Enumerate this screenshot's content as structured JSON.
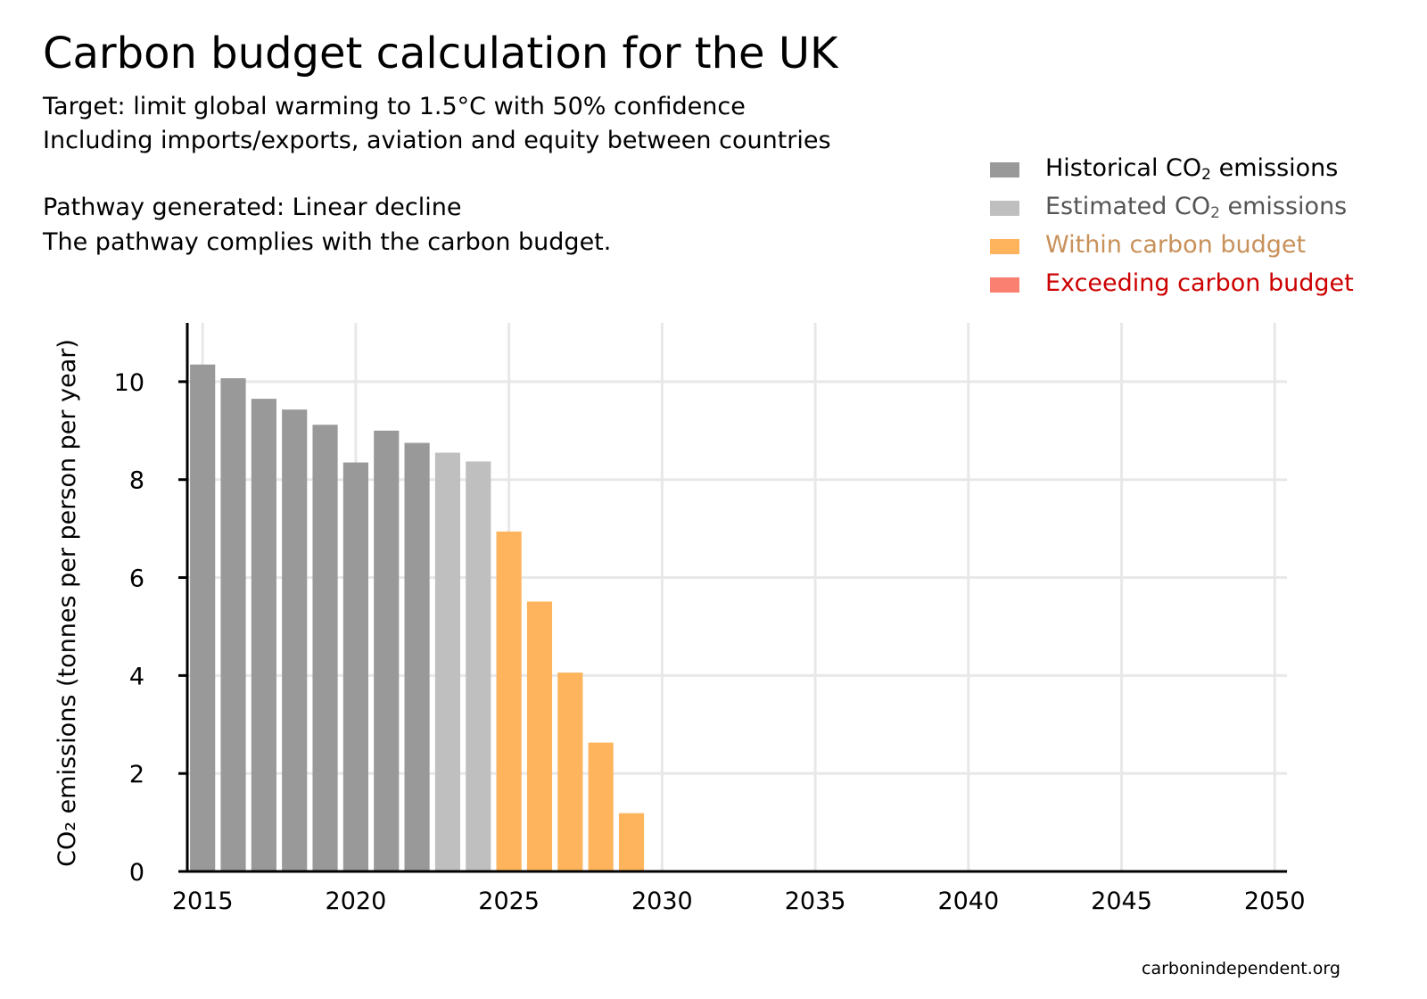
{
  "header": {
    "title": "Carbon budget calculation for the UK",
    "subtitle_1": "Target: limit global warming to 1.5°C with 50% confidence",
    "subtitle_2": "Including imports/exports, aviation and equity between countries",
    "pathway": "Pathway generated: Linear decline",
    "compliance": "The pathway complies with the carbon budget."
  },
  "legend": {
    "items": [
      {
        "pre": "Historical CO",
        "sub": "2",
        "post": " emissions",
        "color": "#999999",
        "text_color": "#000000"
      },
      {
        "pre": "Estimated CO",
        "sub": "2",
        "post": " emissions",
        "color": "#bfbfbf",
        "text_color": "#555555"
      },
      {
        "pre": "Within carbon budget",
        "sub": "",
        "post": "",
        "color": "#fdb45c",
        "text_color": "#c8915a"
      },
      {
        "pre": "Exceeding carbon budget",
        "sub": "",
        "post": "",
        "color": "#fa8072",
        "text_color": "#cc0000"
      }
    ]
  },
  "footer": {
    "credit": "carbonindependent.org"
  },
  "chart_data": {
    "type": "bar",
    "title": "Carbon budget calculation for the UK",
    "ylabel": "CO₂ emissions (tonnes per person per year)",
    "xlabel": "",
    "x_ticks": [
      2015,
      2020,
      2025,
      2030,
      2035,
      2040,
      2045,
      2050
    ],
    "x_tick_labels": [
      "2015",
      "2020",
      "2025",
      "2030",
      "2035",
      "2040",
      "2045",
      "2050"
    ],
    "y_ticks": [
      0,
      2,
      4,
      6,
      8,
      10
    ],
    "y_tick_labels": [
      "0",
      "2",
      "4",
      "6",
      "8",
      "10"
    ],
    "xlim": [
      2014.5,
      2050.4
    ],
    "ylim": [
      0,
      11.2
    ],
    "grid": true,
    "legend_position": "top-right",
    "series": [
      {
        "name": "Historical CO₂ emissions",
        "color": "#999999",
        "x": [
          2015,
          2016,
          2017,
          2018,
          2019,
          2020,
          2021,
          2022
        ],
        "values": [
          10.35,
          10.07,
          9.65,
          9.43,
          9.12,
          8.35,
          9.0,
          8.75
        ]
      },
      {
        "name": "Estimated CO₂ emissions",
        "color": "#bfbfbf",
        "x": [
          2023,
          2024
        ],
        "values": [
          8.55,
          8.37
        ]
      },
      {
        "name": "Within carbon budget",
        "color": "#fdb45c",
        "x": [
          2025,
          2026,
          2027,
          2028,
          2029,
          2030,
          2031,
          2032,
          2033,
          2034,
          2035,
          2036,
          2037,
          2038,
          2039,
          2040,
          2041,
          2042,
          2043,
          2044,
          2045,
          2046,
          2047,
          2048,
          2049,
          2050
        ],
        "values": [
          6.94,
          5.51,
          4.06,
          2.63,
          1.19,
          0,
          0,
          0,
          0,
          0,
          0,
          0,
          0,
          0,
          0,
          0,
          0,
          0,
          0,
          0,
          0,
          0,
          0,
          0,
          0,
          0.02
        ]
      },
      {
        "name": "Exceeding carbon budget",
        "color": "#fa8072",
        "x": [],
        "values": []
      }
    ]
  }
}
